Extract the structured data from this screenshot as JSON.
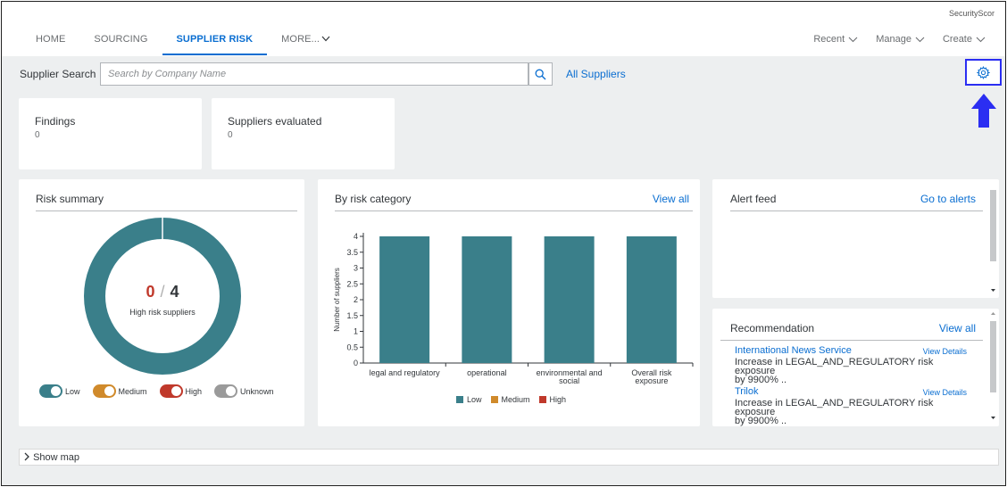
{
  "brand": "SecurityScor",
  "nav": {
    "tabs": [
      {
        "label": "HOME"
      },
      {
        "label": "SOURCING"
      },
      {
        "label": "SUPPLIER RISK"
      },
      {
        "label": "MORE..."
      }
    ],
    "active_tab": "SUPPLIER RISK",
    "right_menu": [
      {
        "label": "Recent"
      },
      {
        "label": "Manage"
      },
      {
        "label": "Create"
      }
    ]
  },
  "search": {
    "label": "Supplier Search",
    "placeholder": "Search by Company Name",
    "value": "",
    "all_suppliers_link": "All Suppliers"
  },
  "kpis": [
    {
      "title": "Findings",
      "value": "0"
    },
    {
      "title": "Suppliers evaluated",
      "value": "0"
    }
  ],
  "risk_summary": {
    "title": "Risk summary",
    "high_risk_count": "0",
    "separator": "/",
    "total": "4",
    "subtitle": "High risk suppliers",
    "segments": [
      {
        "label": "Low",
        "value": 4,
        "color": "#3a7f8a"
      },
      {
        "label": "Medium",
        "value": 0,
        "color": "#d08a2b"
      },
      {
        "label": "High",
        "value": 0,
        "color": "#c0392b"
      },
      {
        "label": "Unknown",
        "value": 0,
        "color": "#9a9a9a"
      }
    ],
    "toggles": [
      {
        "label": "Low",
        "color": "#3a7f8a",
        "on": true
      },
      {
        "label": "Medium",
        "color": "#d08a2b",
        "on": true
      },
      {
        "label": "High",
        "color": "#c0392b",
        "on": true
      },
      {
        "label": "Unknown",
        "color": "#9a9a9a",
        "on": true
      }
    ]
  },
  "by_risk_category": {
    "title": "By risk category",
    "link": "View all"
  },
  "chart_data": {
    "type": "bar",
    "categories": [
      "legal and regulatory",
      "operational",
      "environmental and social",
      "Overall risk exposure"
    ],
    "category_lines": [
      [
        "legal and regulatory"
      ],
      [
        "operational"
      ],
      [
        "environmental and",
        "social"
      ],
      [
        "Overall risk",
        "exposure"
      ]
    ],
    "series": [
      {
        "name": "Low",
        "color": "#3a7f8a",
        "values": [
          4,
          4,
          4,
          4
        ]
      },
      {
        "name": "Medium",
        "color": "#d08a2b",
        "values": [
          0,
          0,
          0,
          0
        ]
      },
      {
        "name": "High",
        "color": "#c0392b",
        "values": [
          0,
          0,
          0,
          0
        ]
      }
    ],
    "ylabel": "Number of suppliers",
    "xlabel": "",
    "ylim": [
      0,
      4
    ],
    "yticks": [
      "0",
      "0.5",
      "1",
      "1.5",
      "2",
      "2.5",
      "3",
      "3.5",
      "4"
    ],
    "legend_position": "bottom",
    "grid": false
  },
  "alert_feed": {
    "title": "Alert feed",
    "link": "Go to alerts"
  },
  "recommendation": {
    "title": "Recommendation",
    "link": "View all",
    "items": [
      {
        "name": "International News Service",
        "details": "View Details",
        "text_line1": "Increase in LEGAL_AND_REGULATORY risk exposure",
        "text_line2": "by 9900% .."
      },
      {
        "name": "Trilok",
        "details": "View Details",
        "text_line1": "Increase in LEGAL_AND_REGULATORY risk exposure",
        "text_line2": "by 9900% .."
      }
    ]
  },
  "show_map": {
    "label": "Show map"
  },
  "colors": {
    "accent": "#0a6ed1",
    "highlight_box": "#2b2ef2",
    "low": "#3a7f8a",
    "medium": "#d08a2b",
    "high": "#c0392b",
    "unknown": "#9a9a9a"
  }
}
